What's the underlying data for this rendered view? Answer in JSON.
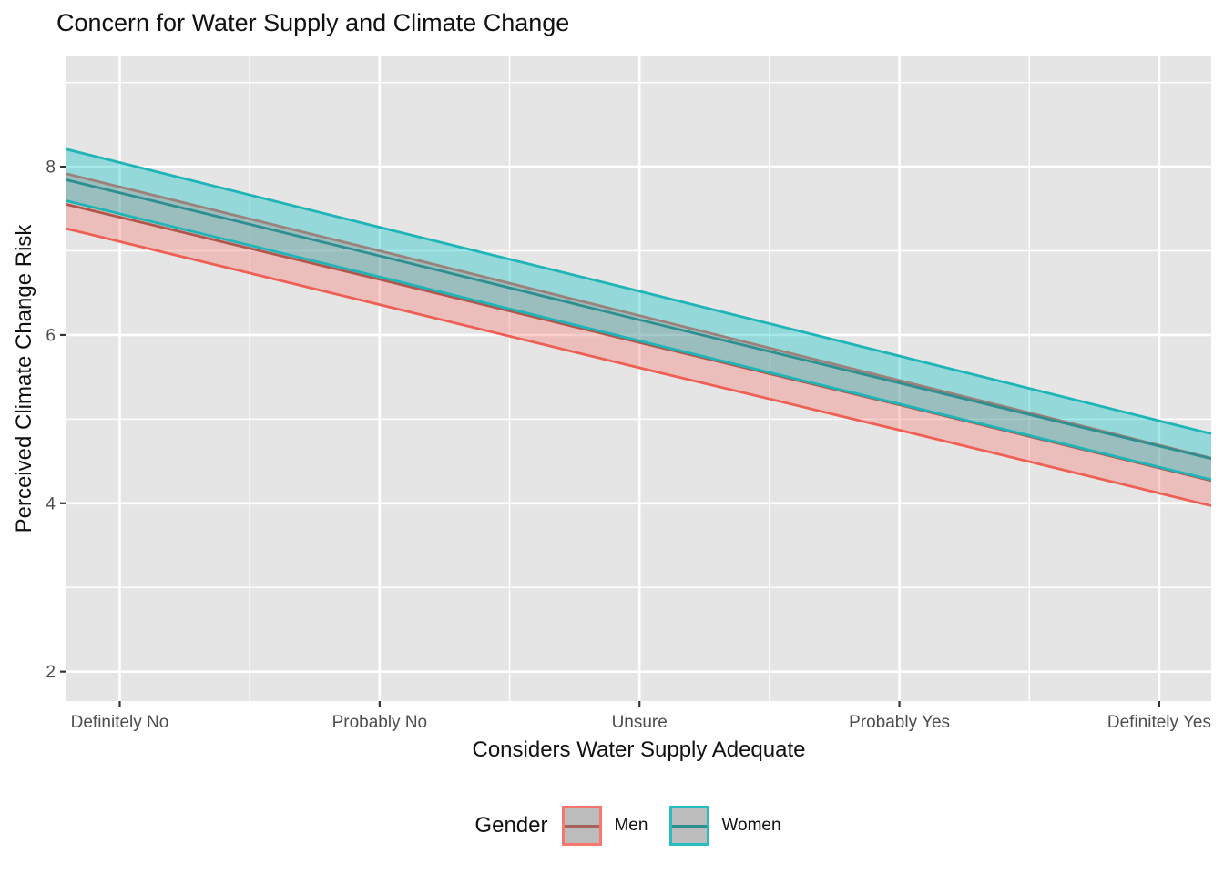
{
  "title": "Concern for Water Supply and Climate Change",
  "x_axis": {
    "title": "Considers Water Supply Adequate",
    "tick_labels": [
      "Definitely No",
      "Probably No",
      "Unsure",
      "Probably Yes",
      "Definitely Yes"
    ],
    "tick_values": [
      1,
      2,
      3,
      4,
      5
    ],
    "minor_tick_values": [
      1.5,
      2.5,
      3.5,
      4.5
    ],
    "range": [
      0.795,
      5.2
    ]
  },
  "y_axis": {
    "title": "Perceived Climate Change Risk",
    "tick_labels": [
      "2",
      "4",
      "6",
      "8"
    ],
    "tick_values": [
      2,
      4,
      6,
      8
    ],
    "minor_tick_values": [
      3,
      5,
      7,
      9
    ],
    "range": [
      1.65,
      9.31
    ]
  },
  "legend": {
    "title": "Gender",
    "items": [
      {
        "label": "Men",
        "series": "Men"
      },
      {
        "label": "Women",
        "series": "Women"
      }
    ]
  },
  "styles": {
    "panel_bg": "#E5E5E5",
    "grid_color": "#FFFFFF",
    "tick_mark_color": "#333333",
    "tick_text_color": "#4D4D4D",
    "series": {
      "Men": {
        "edge": "#EE6055",
        "fill": "rgba(248,118,109,0.35)",
        "fit": "#B0574D",
        "legend_border": "#F8766D",
        "legend_line": "#A5625C",
        "legend_fill": "#BCBCBC"
      },
      "Women": {
        "edge": "#1FB4B7",
        "fill": "rgba(0,191,196,0.35)",
        "fit": "#2E8E90",
        "legend_border": "#27BDC0",
        "legend_line": "#2E8E90",
        "legend_fill": "#BCBCBC"
      }
    }
  },
  "chart_data": {
    "type": "line",
    "title": "Concern for Water Supply and Climate Change",
    "xlabel": "Considers Water Supply Adequate",
    "ylabel": "Perceived Climate Change Risk",
    "categories": [
      "Definitely No",
      "Probably No",
      "Unsure",
      "Probably Yes",
      "Definitely Yes"
    ],
    "x": [
      1,
      2,
      3,
      4,
      5
    ],
    "xlim": [
      0.795,
      5.2
    ],
    "ylim": [
      1.65,
      9.31
    ],
    "grid": "on",
    "legend_position": "bottom",
    "series": [
      {
        "name": "Men",
        "fit": [
          7.4,
          6.66,
          5.91,
          5.17,
          4.42
        ],
        "ci_upper": [
          7.76,
          7.0,
          6.23,
          5.46,
          4.69
        ],
        "ci_lower": [
          7.11,
          6.36,
          5.61,
          4.87,
          4.12
        ]
      },
      {
        "name": "Women",
        "fit": [
          7.69,
          6.94,
          6.18,
          5.43,
          4.68
        ],
        "ci_upper": [
          8.05,
          7.28,
          6.52,
          5.75,
          4.98
        ],
        "ci_lower": [
          7.44,
          6.69,
          5.93,
          5.18,
          4.43
        ]
      }
    ]
  }
}
